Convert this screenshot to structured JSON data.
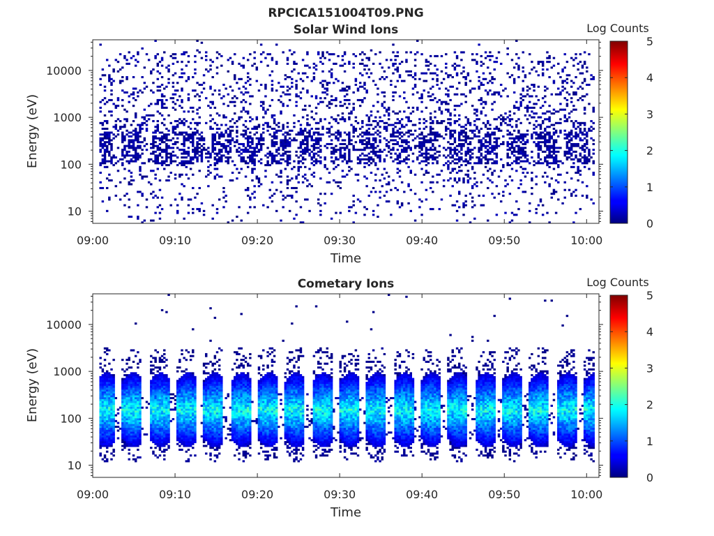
{
  "figure_title": "RPCICA151004T09.PNG",
  "chart_data": [
    {
      "type": "heatmap",
      "title": "Solar Wind Ions",
      "xlabel": "Time",
      "ylabel": "Energy (eV)",
      "x_ticks": [
        "09:00",
        "09:10",
        "09:20",
        "09:30",
        "09:40",
        "09:50",
        "10:00"
      ],
      "x_range_minutes": [
        0,
        61.5
      ],
      "y_ticks": [
        "10",
        "100",
        "1000",
        "10000"
      ],
      "y_range_eV": [
        5.5,
        45000
      ],
      "y_scale": "log",
      "colorbar": {
        "label": "Log Counts",
        "ticks": [
          "0",
          "1",
          "2",
          "3",
          "4",
          "5"
        ],
        "range": [
          0,
          5
        ],
        "colormap": "jet"
      },
      "pattern": {
        "description_values": "sparse single counts (log count 0) scattered over 10-40000 eV; denser band at 100-500 eV",
        "band_energy_eV": [
          100,
          500
        ],
        "max_log_counts": 0.3,
        "sweep_period_minutes": 3.6
      }
    },
    {
      "type": "heatmap",
      "title": "Cometary Ions",
      "xlabel": "Time",
      "ylabel": "Energy (eV)",
      "x_ticks": [
        "09:00",
        "09:10",
        "09:20",
        "09:30",
        "09:40",
        "09:50",
        "10:00"
      ],
      "x_range_minutes": [
        0,
        61.5
      ],
      "y_ticks": [
        "10",
        "100",
        "1000",
        "10000"
      ],
      "y_range_eV": [
        5.5,
        45000
      ],
      "y_scale": "log",
      "colorbar": {
        "label": "Log Counts",
        "ticks": [
          "0",
          "1",
          "2",
          "3",
          "4",
          "5"
        ],
        "range": [
          0,
          5
        ],
        "colormap": "jet"
      },
      "pattern": {
        "sweep_period_minutes": 3.3,
        "peak_energy_eV": 150,
        "energy_extent_eV": [
          20,
          2000
        ],
        "max_log_counts": 2.0
      }
    }
  ]
}
